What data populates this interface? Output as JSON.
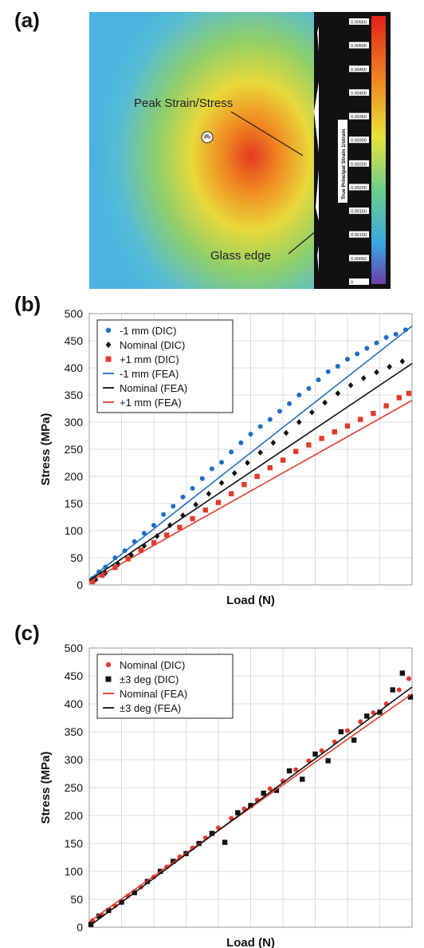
{
  "panel_a": {
    "label": "(a)",
    "annotations": {
      "peak": "Peak Strain/Stress",
      "edge": "Glass edge"
    },
    "colorbar_title": "True Principal Strain 1/strain",
    "colorbar_ticks": [
      "0.00550",
      "0.00500",
      "0.00450",
      "0.00400",
      "0.00350",
      "0.00300",
      "0.00250",
      "0.00200",
      "0.00150",
      "0.00100",
      "0.00050",
      "0"
    ]
  },
  "chart_data": [
    {
      "type": "scatter",
      "label": "(b)",
      "xlabel": "Load (N)",
      "ylabel": "Stress (MPa)",
      "ylim": [
        0,
        500
      ],
      "yticks": [
        0,
        50,
        100,
        150,
        200,
        250,
        300,
        350,
        400,
        450,
        500
      ],
      "xlim": [
        0,
        10
      ],
      "grid": true,
      "legend": "top-left",
      "series": [
        {
          "name": "-1 mm (DIC)",
          "type": "scatter",
          "marker": "circle",
          "color": "#1f6fc0",
          "x": [
            0.1,
            0.3,
            0.5,
            0.8,
            1.1,
            1.4,
            1.7,
            2.0,
            2.3,
            2.6,
            2.9,
            3.2,
            3.5,
            3.8,
            4.1,
            4.4,
            4.7,
            5.0,
            5.3,
            5.6,
            5.9,
            6.2,
            6.5,
            6.8,
            7.1,
            7.4,
            7.7,
            8.0,
            8.3,
            8.6,
            8.9,
            9.2,
            9.5,
            9.8
          ],
          "y": [
            12,
            24,
            33,
            50,
            63,
            80,
            95,
            110,
            130,
            145,
            162,
            178,
            196,
            214,
            226,
            245,
            262,
            278,
            292,
            305,
            320,
            334,
            350,
            362,
            378,
            393,
            403,
            416,
            426,
            436,
            446,
            456,
            462,
            470
          ]
        },
        {
          "name": "Nominal (DIC)",
          "type": "scatter",
          "marker": "diamond",
          "color": "#111111",
          "x": [
            0.2,
            0.5,
            0.9,
            1.3,
            1.7,
            2.1,
            2.5,
            2.9,
            3.3,
            3.7,
            4.1,
            4.5,
            4.9,
            5.3,
            5.7,
            6.1,
            6.5,
            6.9,
            7.3,
            7.7,
            8.1,
            8.5,
            8.9,
            9.3,
            9.7
          ],
          "y": [
            10,
            22,
            38,
            55,
            72,
            90,
            110,
            128,
            148,
            168,
            188,
            206,
            225,
            244,
            262,
            280,
            300,
            318,
            336,
            353,
            368,
            381,
            392,
            402,
            412
          ]
        },
        {
          "name": "+1 mm (DIC)",
          "type": "scatter",
          "marker": "square",
          "color": "#e23a2e",
          "x": [
            0.1,
            0.4,
            0.8,
            1.2,
            1.6,
            2.0,
            2.4,
            2.8,
            3.2,
            3.6,
            4.0,
            4.4,
            4.8,
            5.2,
            5.6,
            6.0,
            6.4,
            6.8,
            7.2,
            7.6,
            8.0,
            8.4,
            8.8,
            9.2,
            9.6,
            9.9
          ],
          "y": [
            6,
            18,
            32,
            48,
            64,
            78,
            92,
            106,
            122,
            138,
            152,
            168,
            185,
            200,
            216,
            230,
            246,
            258,
            270,
            282,
            293,
            305,
            316,
            330,
            345,
            353
          ]
        },
        {
          "name": "-1 mm (FEA)",
          "type": "line",
          "color": "#1f6fc0",
          "x": [
            0,
            10
          ],
          "y": [
            10,
            477
          ]
        },
        {
          "name": "Nominal (FEA)",
          "type": "line",
          "color": "#111111",
          "x": [
            0,
            10
          ],
          "y": [
            8,
            408
          ]
        },
        {
          "name": "+1 mm (FEA)",
          "type": "line",
          "color": "#e23a2e",
          "x": [
            0,
            10
          ],
          "y": [
            6,
            340
          ]
        }
      ]
    },
    {
      "type": "scatter",
      "label": "(c)",
      "xlabel": "Load (N)",
      "ylabel": "Stress (MPa)",
      "ylim": [
        0,
        500
      ],
      "yticks": [
        0,
        50,
        100,
        150,
        200,
        250,
        300,
        350,
        400,
        450,
        500
      ],
      "xlim": [
        0,
        10
      ],
      "grid": true,
      "legend": "top-left",
      "series": [
        {
          "name": "Nominal (DIC)",
          "type": "scatter",
          "marker": "circle",
          "color": "#e23a2e",
          "x": [
            0.1,
            0.4,
            0.8,
            1.2,
            1.6,
            2.0,
            2.4,
            2.8,
            3.2,
            3.6,
            4.0,
            4.4,
            4.8,
            5.2,
            5.6,
            6.0,
            6.4,
            6.8,
            7.2,
            7.6,
            8.0,
            8.4,
            8.8,
            9.2,
            9.6,
            9.9
          ],
          "y": [
            12,
            22,
            38,
            56,
            72,
            90,
            108,
            126,
            142,
            160,
            178,
            195,
            212,
            228,
            248,
            262,
            282,
            298,
            316,
            332,
            352,
            368,
            384,
            400,
            425,
            445
          ]
        },
        {
          "name": "±3 deg (DIC)",
          "type": "scatter",
          "marker": "square",
          "color": "#111111",
          "x": [
            0.05,
            0.3,
            0.6,
            1.0,
            1.4,
            1.8,
            2.2,
            2.6,
            3.0,
            3.4,
            3.8,
            4.2,
            4.6,
            5.0,
            5.4,
            5.8,
            6.2,
            6.6,
            7.0,
            7.4,
            7.8,
            8.2,
            8.6,
            9.0,
            9.4,
            9.7,
            9.95
          ],
          "y": [
            5,
            20,
            30,
            45,
            62,
            82,
            100,
            118,
            132,
            150,
            168,
            152,
            205,
            218,
            240,
            245,
            280,
            265,
            310,
            298,
            350,
            335,
            378,
            385,
            425,
            455,
            412
          ]
        },
        {
          "name": "Nominal (FEA)",
          "type": "line",
          "color": "#e23a2e",
          "x": [
            0,
            10
          ],
          "y": [
            10,
            418
          ]
        },
        {
          "name": "±3 deg (FEA)",
          "type": "line",
          "color": "#111111",
          "x": [
            0,
            10
          ],
          "y": [
            2,
            430
          ]
        }
      ]
    }
  ]
}
